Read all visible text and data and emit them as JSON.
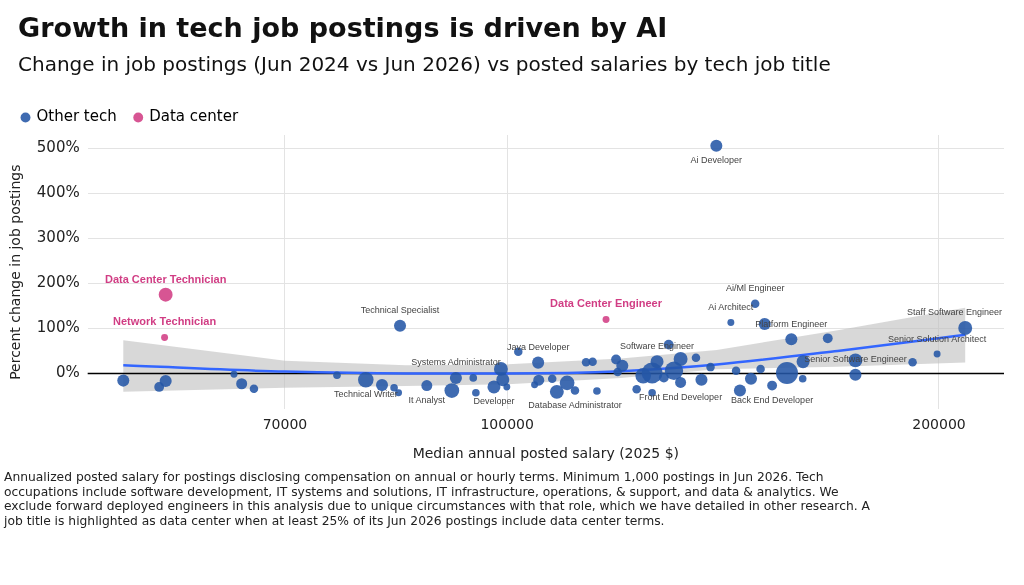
{
  "chart_data": {
    "type": "bubble",
    "title": "Growth in tech job postings is driven by AI",
    "subtitle": "Change in job postings (Jun 2024 vs Jun 2026) vs posted salaries by tech job title",
    "xlabel": "Median annual posted salary (2025 $)",
    "ylabel": "Percent change in job postings",
    "log": "x",
    "xlim": [
      51000,
      222000
    ],
    "xticks": [
      70000,
      100000,
      200000
    ],
    "ylim": [
      -80,
      530
    ],
    "yticks": [
      {
        "value": 0,
        "label": "0%"
      },
      {
        "value": 100,
        "label": "100%"
      },
      {
        "value": 200,
        "label": "200%"
      },
      {
        "value": 300,
        "label": "300%"
      },
      {
        "value": 400,
        "label": "400%"
      },
      {
        "value": 500,
        "label": "500%"
      }
    ],
    "grid": true,
    "legend": "top left",
    "ref_lines": [
      {
        "axis": "y",
        "value": 0,
        "color": "#000000"
      }
    ],
    "series": [
      {
        "name": "Other tech",
        "color": "#2457a6",
        "x": [
          54000,
          57200,
          57800,
          64500,
          65300,
          66600,
          76100,
          79700,
          81800,
          83400,
          84000,
          84200,
          87900,
          91500,
          92100,
          94700,
          95100,
          97900,
          99000,
          99300,
          99950,
          101800,
          104500,
          105100,
          105200,
          107500,
          108300,
          110100,
          111500,
          113500,
          114700,
          115500,
          119100,
          119400,
          120300,
          123100,
          124400,
          126200,
          126200,
          127200,
          128600,
          129600,
          130700,
          132100,
          132100,
          135400,
          136600,
          138600,
          139900,
          143200,
          144400,
          145300,
          147900,
          148900,
          150200,
          151200,
          153000,
          156700,
          157800,
          160700,
          160800,
          167300,
          174900,
          174900,
          191700,
          199400,
          208600
        ],
        "values": [
          -16,
          -30,
          -17,
          -2,
          -23,
          -34,
          -4,
          -14,
          -26,
          -32,
          -43,
          106,
          -27,
          -38,
          -10,
          -10,
          -43,
          -30,
          10,
          -14,
          -30,
          48,
          -25,
          24,
          -15,
          -12,
          -41,
          -21,
          -38,
          25,
          26,
          -39,
          31,
          3,
          17,
          -35,
          -5,
          1,
          -43,
          26,
          -9,
          64,
          6,
          32,
          -20,
          35,
          -14,
          14,
          506,
          113,
          6,
          -38,
          -12,
          155,
          10,
          110,
          -27,
          1,
          76,
          -12,
          26,
          78,
          29,
          -3,
          25,
          43,
          101
        ],
        "sizes": [
          0.3,
          0.2,
          0.3,
          0.1,
          0.25,
          0.15,
          0.12,
          0.5,
          0.3,
          0.12,
          0.1,
          0.3,
          0.25,
          0.45,
          0.3,
          0.12,
          0.12,
          0.35,
          0.4,
          0.35,
          0.1,
          0.15,
          0.1,
          0.3,
          0.25,
          0.15,
          0.4,
          0.45,
          0.15,
          0.15,
          0.15,
          0.12,
          0.2,
          0.15,
          0.3,
          0.15,
          0.5,
          0.9,
          0.12,
          0.35,
          0.2,
          0.2,
          0.7,
          0.4,
          0.25,
          0.15,
          0.3,
          0.15,
          0.3,
          0.1,
          0.15,
          0.3,
          0.3,
          0.15,
          0.15,
          0.3,
          0.2,
          1,
          0.3,
          0.12,
          0.35,
          0.2,
          0.4,
          0.3,
          0.15,
          0.1,
          0.4
        ]
      },
      {
        "name": "Data center",
        "color": "#d13d84",
        "x": [
          57800,
          57700,
          117200
        ],
        "values": [
          175,
          80,
          120
        ],
        "sizes": [
          0.4,
          0.1,
          0.1
        ]
      },
      {
        "type": "line",
        "color": "#3366ff",
        "x": [
          54000,
          70000,
          85000,
          100000,
          120000,
          140000,
          170000,
          208600
        ],
        "values": [
          18,
          4,
          0,
          0,
          5,
          20,
          50,
          86
        ],
        "lower": [
          -41,
          -32,
          -28,
          -24,
          -10,
          9,
          15,
          24
        ],
        "upper": [
          74,
          28,
          18,
          20,
          33,
          52,
          96,
          146
        ]
      }
    ],
    "annotations": [
      {
        "text": "Ai Developer",
        "x": 139900,
        "y": 506
      },
      {
        "text": "Technical Specialist",
        "x": 84200,
        "y": 106
      },
      {
        "text": "Ai Architect",
        "x": 143200,
        "y": 113
      },
      {
        "text": "Ai/Ml Engineer",
        "x": 148900,
        "y": 155
      },
      {
        "text": "Staff Software Engineer",
        "x": 208600,
        "y": 101
      },
      {
        "text": "Platform Engineer",
        "x": 157800,
        "y": 76
      },
      {
        "text": "Senior Solution Architect",
        "x": 199400,
        "y": 43
      },
      {
        "text": "Senior Software Engineer",
        "x": 174900,
        "y": -3
      },
      {
        "text": "Software Engineer",
        "x": 127200,
        "y": 26
      },
      {
        "text": "Systems Administrator",
        "x": 92100,
        "y": -10
      },
      {
        "text": "Java Developer",
        "x": 105100,
        "y": 24
      },
      {
        "text": "Technical Writer",
        "x": 79700,
        "y": -14
      },
      {
        "text": "Back End Developer",
        "x": 153000,
        "y": -27
      },
      {
        "text": "It Analyst",
        "x": 87900,
        "y": -27
      },
      {
        "text": "Developer",
        "x": 97900,
        "y": -30
      },
      {
        "text": "Database Administrator",
        "x": 111500,
        "y": -38
      },
      {
        "text": "Front End Developer",
        "x": 132100,
        "y": -20
      },
      {
        "text": "Data Center Technician",
        "x": 57800,
        "y": 175
      },
      {
        "text": "Network Technician",
        "x": 57700,
        "y": 80
      },
      {
        "text": "Data Center Engineer",
        "x": 117200,
        "y": 120
      },
      "Annualized posted salary for postings disclosing compensation on annual or hourly terms. Minimum 1,000 postings in Jun 2026. Tech occupations include software development, IT systems and solutions, IT infrastructure, operations, & support, and data & analytics. We exclude forward deployed engineers in this analysis due to unique circumstances with that role, which we have detailed in other research. A job title is highlighted as data center when at least 25% of its Jun 2026 postings include data center terms."
    ]
  }
}
